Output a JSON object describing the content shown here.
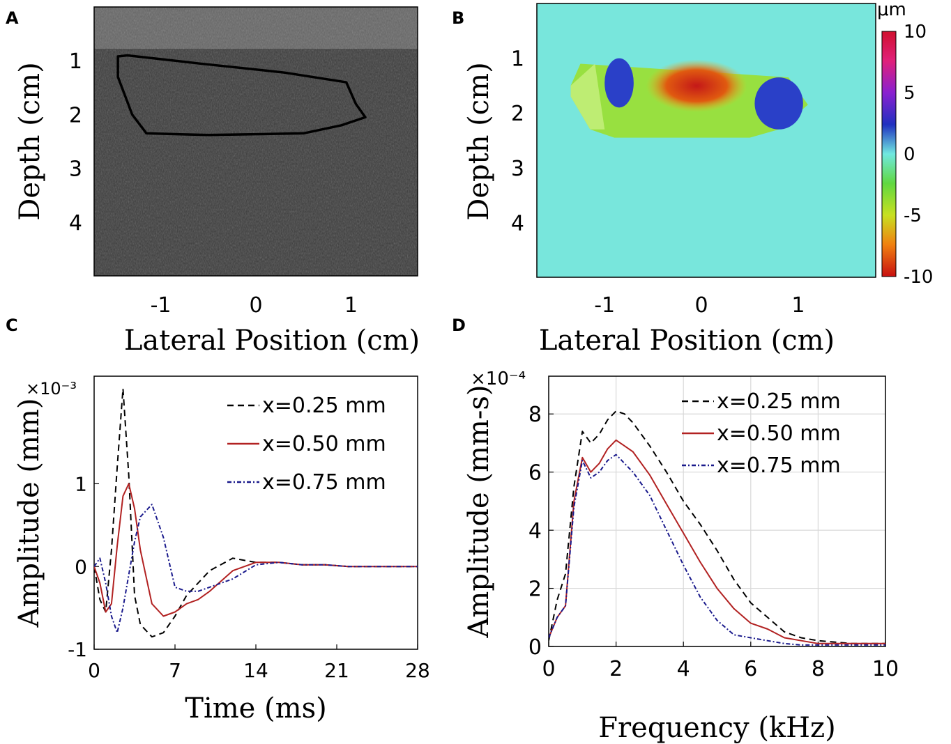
{
  "chart_data": [
    {
      "panel": "A",
      "type": "image",
      "xlabel": "Lateral Position (cm)",
      "ylabel": "Depth (cm)",
      "xticks": [
        "-1",
        "0",
        "1"
      ],
      "yticks": [
        "1",
        "2",
        "3",
        "4"
      ],
      "x_tick_values": [
        -1,
        0,
        1
      ],
      "y_tick_values": [
        1,
        2,
        3,
        4
      ],
      "xlim": [
        -1.7,
        1.7
      ],
      "ylim": [
        0,
        5
      ],
      "colors": {
        "background": "#3a3a3a",
        "outline": "#000000"
      },
      "region_outline": [
        [
          -1.45,
          0.92
        ],
        [
          -1.35,
          0.9
        ],
        [
          -0.6,
          1.05
        ],
        [
          0.3,
          1.22
        ],
        [
          0.95,
          1.4
        ],
        [
          1.05,
          1.8
        ],
        [
          1.15,
          2.05
        ],
        [
          0.9,
          2.2
        ],
        [
          0.5,
          2.35
        ],
        [
          -0.5,
          2.38
        ],
        [
          -1.15,
          2.35
        ],
        [
          -1.3,
          2.0
        ],
        [
          -1.45,
          1.3
        ]
      ]
    },
    {
      "panel": "B",
      "type": "heatmap",
      "xlabel": "Lateral Position (cm)",
      "ylabel": "Depth (cm)",
      "xticks": [
        "-1",
        "0",
        "1"
      ],
      "yticks": [
        "1",
        "2",
        "3",
        "4"
      ],
      "x_tick_values": [
        -1,
        0,
        1
      ],
      "y_tick_values": [
        1,
        2,
        3,
        4
      ],
      "xlim": [
        -1.7,
        1.8
      ],
      "ylim": [
        0,
        5
      ],
      "colorbar": {
        "unit": "μm",
        "ticks": [
          "10",
          "5",
          "0",
          "-5",
          "-10"
        ],
        "tick_values": [
          10,
          5,
          0,
          -5,
          -10
        ],
        "range": [
          -10,
          10
        ]
      },
      "background_value": 0,
      "regions": [
        {
          "x": [
            -1.35,
            1.1
          ],
          "y": [
            1.1,
            2.45
          ],
          "value": -3.5
        },
        {
          "x": [
            -1.0,
            -0.7
          ],
          "y": [
            1.0,
            1.9
          ],
          "value": 5
        },
        {
          "x": [
            0.55,
            1.05
          ],
          "y": [
            1.35,
            2.3
          ],
          "value": 5
        },
        {
          "x": [
            -0.5,
            0.4
          ],
          "y": [
            1.15,
            1.6
          ],
          "value": -9
        }
      ]
    },
    {
      "panel": "C",
      "type": "line",
      "xlabel": "Time (ms)",
      "ylabel": "Amplitude (mm)",
      "exponent": "×10⁻³",
      "xticks": [
        "0",
        "7",
        "14",
        "21",
        "28"
      ],
      "yticks": [
        "-1",
        "0",
        "1"
      ],
      "x_tick_values": [
        0,
        7,
        14,
        21,
        28
      ],
      "y_tick_values": [
        -1,
        0,
        1
      ],
      "xlim": [
        0,
        28
      ],
      "ylim": [
        -1,
        2.3
      ],
      "legend_position": "top-right",
      "series": [
        {
          "name": "x=0.25 mm",
          "color": "#000000",
          "dash": "9,6",
          "x": [
            0,
            0.5,
            1,
            1.5,
            2,
            2.5,
            3,
            3.5,
            4,
            5,
            6,
            7,
            8,
            9,
            10,
            12,
            14,
            16,
            18,
            20,
            22,
            24,
            26,
            28
          ],
          "y": [
            0,
            -0.4,
            -0.55,
            0.2,
            1.2,
            2.15,
            1.1,
            -0.35,
            -0.7,
            -0.85,
            -0.8,
            -0.6,
            -0.35,
            -0.2,
            -0.05,
            0.1,
            0.05,
            0.05,
            0.02,
            0.02,
            0,
            0,
            0,
            0
          ]
        },
        {
          "name": "x=0.50 mm",
          "color": "#b22222",
          "dash": "",
          "x": [
            0,
            0.5,
            1,
            1.5,
            2,
            2.5,
            3,
            3.5,
            4,
            5,
            6,
            7,
            8,
            9,
            10,
            12,
            14,
            16,
            18,
            20,
            22,
            24,
            26,
            28
          ],
          "y": [
            0,
            -0.2,
            -0.55,
            -0.45,
            0.25,
            0.85,
            1.0,
            0.7,
            0.2,
            -0.45,
            -0.6,
            -0.55,
            -0.45,
            -0.4,
            -0.3,
            -0.05,
            0.05,
            0.05,
            0.02,
            0.02,
            0,
            0,
            0,
            0
          ]
        },
        {
          "name": "x=0.75 mm",
          "color": "#1a1a8c",
          "dash": "6,3,2,3",
          "x": [
            0,
            0.5,
            1,
            1.5,
            2,
            2.5,
            3,
            3.5,
            4,
            5,
            6,
            7,
            8,
            9,
            10,
            12,
            14,
            16,
            18,
            20,
            22,
            24,
            26,
            28
          ],
          "y": [
            0,
            0.1,
            -0.2,
            -0.6,
            -0.8,
            -0.5,
            -0.1,
            0.3,
            0.6,
            0.75,
            0.35,
            -0.25,
            -0.3,
            -0.3,
            -0.25,
            -0.15,
            0.02,
            0.05,
            0.02,
            0.02,
            0,
            0,
            0,
            0
          ]
        }
      ]
    },
    {
      "panel": "D",
      "type": "line",
      "xlabel": "Frequency (kHz)",
      "ylabel": "Amplitude (mm-s)",
      "exponent": "×10⁻⁴",
      "xticks": [
        "0",
        "2",
        "4",
        "6",
        "8",
        "10"
      ],
      "yticks": [
        "0",
        "2",
        "4",
        "6",
        "8"
      ],
      "x_tick_values": [
        0,
        2,
        4,
        6,
        8,
        10
      ],
      "y_tick_values": [
        0,
        2,
        4,
        6,
        8
      ],
      "xlim": [
        0,
        10
      ],
      "ylim": [
        0,
        9.3
      ],
      "grid": true,
      "legend_position": "top-right",
      "series": [
        {
          "name": "x=0.25 mm",
          "color": "#000000",
          "dash": "9,6",
          "x": [
            0,
            0.25,
            0.5,
            0.75,
            1,
            1.25,
            1.5,
            1.75,
            2,
            2.25,
            2.5,
            3,
            3.5,
            4,
            4.5,
            5,
            5.5,
            6,
            6.5,
            7,
            7.5,
            8,
            9,
            10
          ],
          "y": [
            0.2,
            1.6,
            2.5,
            5.5,
            7.4,
            7.0,
            7.3,
            7.8,
            8.1,
            8.0,
            7.7,
            6.9,
            6.0,
            5.0,
            4.2,
            3.3,
            2.3,
            1.5,
            1.0,
            0.5,
            0.3,
            0.2,
            0.1,
            0.1
          ]
        },
        {
          "name": "x=0.50 mm",
          "color": "#b22222",
          "dash": "",
          "x": [
            0,
            0.25,
            0.5,
            0.75,
            1,
            1.25,
            1.5,
            1.75,
            2,
            2.25,
            2.5,
            3,
            3.5,
            4,
            4.5,
            5,
            5.5,
            6,
            6.5,
            7,
            7.5,
            8,
            9,
            10
          ],
          "y": [
            0.3,
            1.0,
            1.4,
            5.0,
            6.5,
            6.0,
            6.3,
            6.8,
            7.1,
            6.9,
            6.7,
            5.9,
            4.9,
            3.9,
            2.9,
            2.0,
            1.3,
            0.8,
            0.6,
            0.3,
            0.2,
            0.1,
            0.1,
            0.1
          ]
        },
        {
          "name": "x=0.75 mm",
          "color": "#1a1a8c",
          "dash": "6,3,2,3",
          "x": [
            0,
            0.25,
            0.5,
            0.75,
            1,
            1.25,
            1.5,
            1.75,
            2,
            2.25,
            2.5,
            3,
            3.5,
            4,
            4.5,
            5,
            5.5,
            6,
            6.5,
            7,
            7.5,
            8,
            9,
            10
          ],
          "y": [
            0.3,
            1.0,
            1.4,
            4.8,
            6.4,
            5.8,
            6.0,
            6.4,
            6.6,
            6.3,
            6.0,
            5.2,
            4.0,
            2.8,
            1.7,
            0.9,
            0.4,
            0.3,
            0.2,
            0.1,
            0.05,
            0.05,
            0.05,
            0.05
          ]
        }
      ]
    }
  ],
  "panel_letters": [
    "A",
    "B",
    "C",
    "D"
  ]
}
